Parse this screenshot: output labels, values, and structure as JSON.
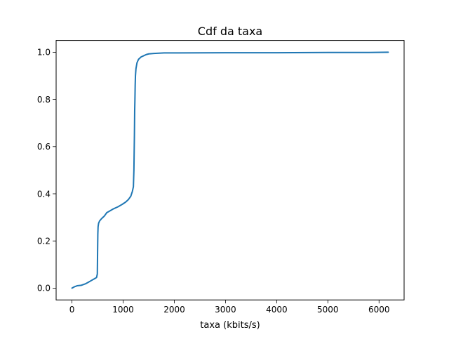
{
  "chart_data": {
    "type": "line",
    "title": "Cdf da taxa",
    "xlabel": "taxa (kbits/s)",
    "ylabel": "",
    "xlim": [
      -310,
      6490
    ],
    "ylim": [
      -0.05,
      1.05
    ],
    "grid": false,
    "xticks": [
      0,
      1000,
      2000,
      3000,
      4000,
      5000,
      6000
    ],
    "xtick_labels": [
      "0",
      "1000",
      "2000",
      "3000",
      "4000",
      "5000",
      "6000"
    ],
    "yticks": [
      0.0,
      0.2,
      0.4,
      0.6,
      0.8,
      1.0
    ],
    "ytick_labels": [
      "0.0",
      "0.2",
      "0.4",
      "0.6",
      "0.8",
      "1.0"
    ],
    "series": [
      {
        "color": "#1f77b4",
        "x": [
          0,
          40,
          100,
          180,
          260,
          320,
          360,
          400,
          440,
          480,
          495,
          500,
          505,
          510,
          520,
          540,
          580,
          630,
          680,
          720,
          800,
          900,
          980,
          1050,
          1100,
          1150,
          1180,
          1200,
          1210,
          1220,
          1225,
          1230,
          1235,
          1240,
          1250,
          1270,
          1300,
          1350,
          1400,
          1450,
          1500,
          1600,
          1800,
          2000,
          3000,
          4000,
          5000,
          5800,
          6180
        ],
        "y": [
          0.0,
          0.005,
          0.01,
          0.012,
          0.018,
          0.025,
          0.03,
          0.035,
          0.04,
          0.045,
          0.06,
          0.15,
          0.23,
          0.26,
          0.275,
          0.285,
          0.295,
          0.305,
          0.32,
          0.325,
          0.335,
          0.345,
          0.355,
          0.365,
          0.375,
          0.39,
          0.41,
          0.43,
          0.5,
          0.65,
          0.75,
          0.8,
          0.86,
          0.9,
          0.93,
          0.955,
          0.97,
          0.98,
          0.985,
          0.99,
          0.993,
          0.995,
          0.997,
          0.997,
          0.998,
          0.998,
          0.999,
          0.999,
          1.0
        ]
      }
    ]
  }
}
